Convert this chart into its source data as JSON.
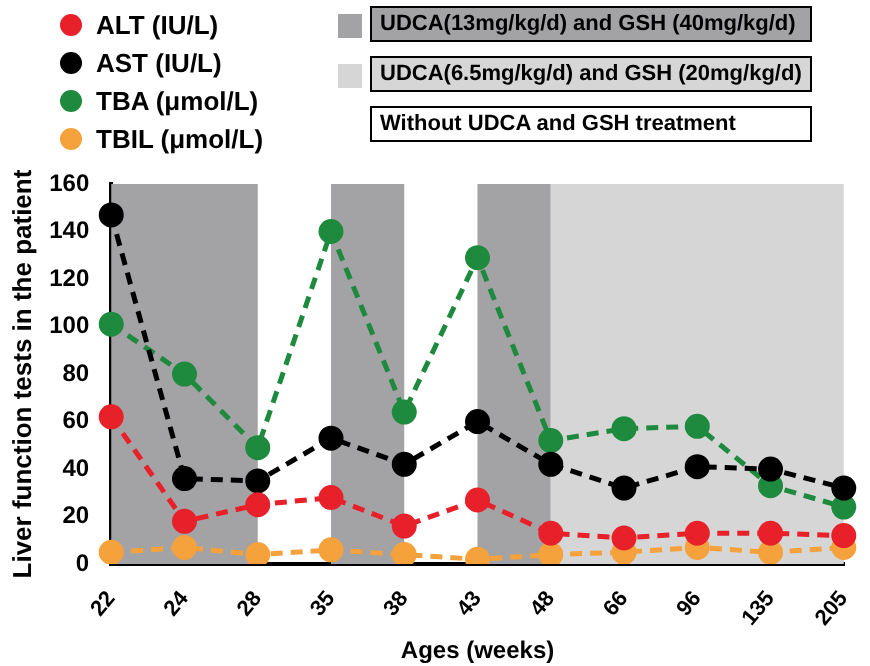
{
  "chart_data": {
    "type": "line",
    "xlabel": "Ages (weeks)",
    "ylabel": "Liver function tests in the patient",
    "categories": [
      "22",
      "24",
      "28",
      "35",
      "38",
      "43",
      "48",
      "66",
      "96",
      "135",
      "205"
    ],
    "series": [
      {
        "name": "ALT (IU/L)",
        "color": "#e8202a",
        "values": [
          62,
          18,
          25,
          28,
          16,
          27,
          13,
          11,
          13,
          13,
          12
        ]
      },
      {
        "name": "AST (IU/L)",
        "color": "#000000",
        "values": [
          147,
          36,
          35,
          53,
          42,
          60,
          42,
          32,
          41,
          40,
          32
        ]
      },
      {
        "name": "TBA (μmol/L)",
        "color": "#1e8a3e",
        "values": [
          101,
          80,
          49,
          140,
          64,
          129,
          52,
          57,
          58,
          33,
          24
        ]
      },
      {
        "name": "TBIL (μmol/L)",
        "color": "#f5a23c",
        "values": [
          5,
          7,
          4,
          6,
          4,
          2,
          4,
          5,
          7,
          5,
          7
        ]
      }
    ],
    "ylim": [
      0,
      160
    ],
    "yticks": [
      0,
      20,
      40,
      60,
      80,
      100,
      120,
      140,
      160
    ],
    "bands": [
      {
        "axis": "x",
        "from": "22",
        "to": "28",
        "label": "UDCA(13mg/kg/d) and GSH (40mg/kg/d)",
        "color": "#a3a3a5"
      },
      {
        "axis": "x",
        "from": "35",
        "to": "38",
        "label": null,
        "color": "#a3a3a5"
      },
      {
        "axis": "x",
        "from": "43",
        "to": "48",
        "label": null,
        "color": "#a3a3a5"
      },
      {
        "axis": "x",
        "from": "48",
        "to": "205",
        "label": "UDCA(6.5mg/kg/d) and GSH (20mg/kg/d)",
        "color": "#d6d6d6"
      }
    ],
    "annotations": [
      "Without UDCA and GSH treatment"
    ],
    "grid": false,
    "legend": "top left",
    "marker": "circle",
    "line_style": "dashed"
  }
}
